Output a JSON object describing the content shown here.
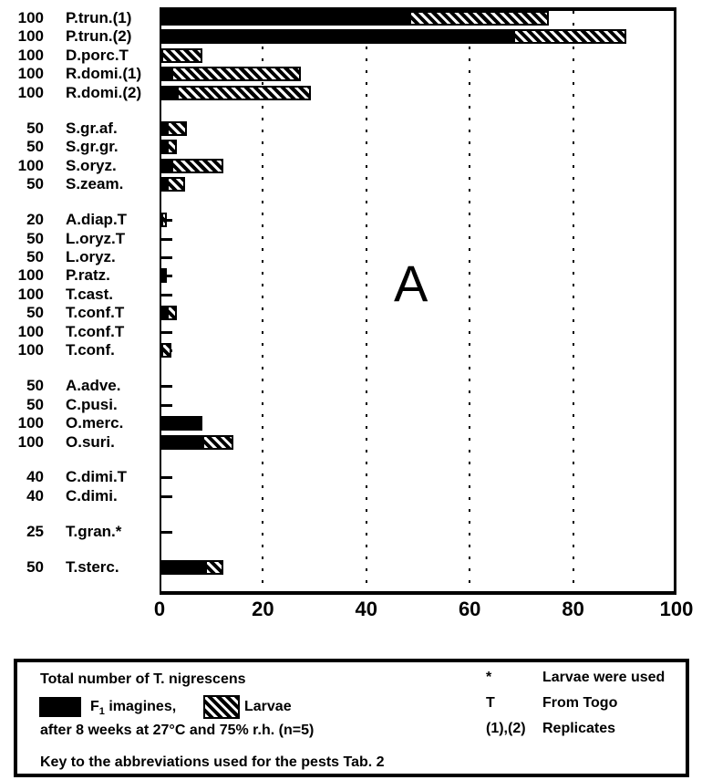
{
  "chart_data": {
    "type": "bar",
    "orientation": "horizontal",
    "panel_label": "A",
    "xlim": [
      0,
      100
    ],
    "x_ticks": [
      0,
      20,
      40,
      60,
      80,
      100
    ],
    "gridlines_at": [
      20,
      40,
      60,
      80
    ],
    "grid_style": "dotted-vertical",
    "legend_position": "bottom-box",
    "series": [
      {
        "name": "F1 imagines",
        "style": "solid-black"
      },
      {
        "name": "Larvae",
        "style": "diagonal-hatch"
      }
    ],
    "rows": [
      {
        "n": "100",
        "label": "P.trun.(1)",
        "imagines": 48,
        "larvae": 27,
        "group": 0
      },
      {
        "n": "100",
        "label": "P.trun.(2)",
        "imagines": 68,
        "larvae": 22,
        "group": 0
      },
      {
        "n": "100",
        "label": "D.porc.T",
        "imagines": 0,
        "larvae": 8,
        "group": 0
      },
      {
        "n": "100",
        "label": "R.domi.(1)",
        "imagines": 2,
        "larvae": 25,
        "group": 0
      },
      {
        "n": "100",
        "label": "R.domi.(2)",
        "imagines": 3,
        "larvae": 26,
        "group": 0
      },
      {
        "n": "50",
        "label": "S.gr.af.",
        "imagines": 1,
        "larvae": 4,
        "group": 1
      },
      {
        "n": "50",
        "label": "S.gr.gr.",
        "imagines": 1,
        "larvae": 2,
        "group": 1
      },
      {
        "n": "100",
        "label": "S.oryz.",
        "imagines": 2,
        "larvae": 10,
        "group": 1
      },
      {
        "n": "50",
        "label": "S.zeam.",
        "imagines": 1,
        "larvae": 3.5,
        "group": 1
      },
      {
        "n": "20",
        "label": "A.diap.T",
        "imagines": 0,
        "larvae": 1,
        "group": 2
      },
      {
        "n": "50",
        "label": "L.oryz.T",
        "imagines": 0,
        "larvae": 0,
        "group": 2
      },
      {
        "n": "50",
        "label": "L.oryz.",
        "imagines": 0,
        "larvae": 0,
        "group": 2
      },
      {
        "n": "100",
        "label": "P.ratz.",
        "imagines": 1,
        "larvae": 0,
        "group": 2
      },
      {
        "n": "100",
        "label": "T.cast.",
        "imagines": 0,
        "larvae": 0,
        "group": 2
      },
      {
        "n": "50",
        "label": "T.conf.T",
        "imagines": 1,
        "larvae": 2,
        "group": 2
      },
      {
        "n": "100",
        "label": "T.conf.T",
        "imagines": 0,
        "larvae": 0,
        "group": 2
      },
      {
        "n": "100",
        "label": "T.conf.",
        "imagines": 0,
        "larvae": 2,
        "group": 2
      },
      {
        "n": "50",
        "label": "A.adve.",
        "imagines": 0,
        "larvae": 0,
        "group": 3
      },
      {
        "n": "50",
        "label": "C.pusi.",
        "imagines": 0,
        "larvae": 0,
        "group": 3
      },
      {
        "n": "100",
        "label": "O.merc.",
        "imagines": 8,
        "larvae": 0,
        "group": 3
      },
      {
        "n": "100",
        "label": "O.suri.",
        "imagines": 8,
        "larvae": 6,
        "group": 3
      },
      {
        "n": "40",
        "label": "C.dimi.T",
        "imagines": 0,
        "larvae": 0,
        "group": 4
      },
      {
        "n": "40",
        "label": "C.dimi.",
        "imagines": 0,
        "larvae": 0,
        "group": 4
      },
      {
        "n": "25",
        "label": "T.gran.*",
        "imagines": 0,
        "larvae": 0,
        "group": 5
      },
      {
        "n": "50",
        "label": "T.sterc.",
        "imagines": 8.5,
        "larvae": 3.5,
        "group": 6
      }
    ]
  },
  "legend": {
    "title_line": "Total number of T. nigrescens",
    "imagines_f": "F",
    "imagines_sub": "1",
    "imagines_rest": " imagines,",
    "larvae_label": "Larvae",
    "conditions_line": "after 8 weeks at 27°C and 75% r.h. (n=5)",
    "key_line": "Key to the abbreviations used for the pests Tab. 2",
    "notes": [
      {
        "symbol": "*",
        "text": "Larvae were used"
      },
      {
        "symbol": "T",
        "text": "From Togo"
      },
      {
        "symbol": "(1),(2)",
        "text": "Replicates"
      }
    ]
  },
  "colors": {
    "ink": "#000000",
    "paper": "#ffffff"
  }
}
